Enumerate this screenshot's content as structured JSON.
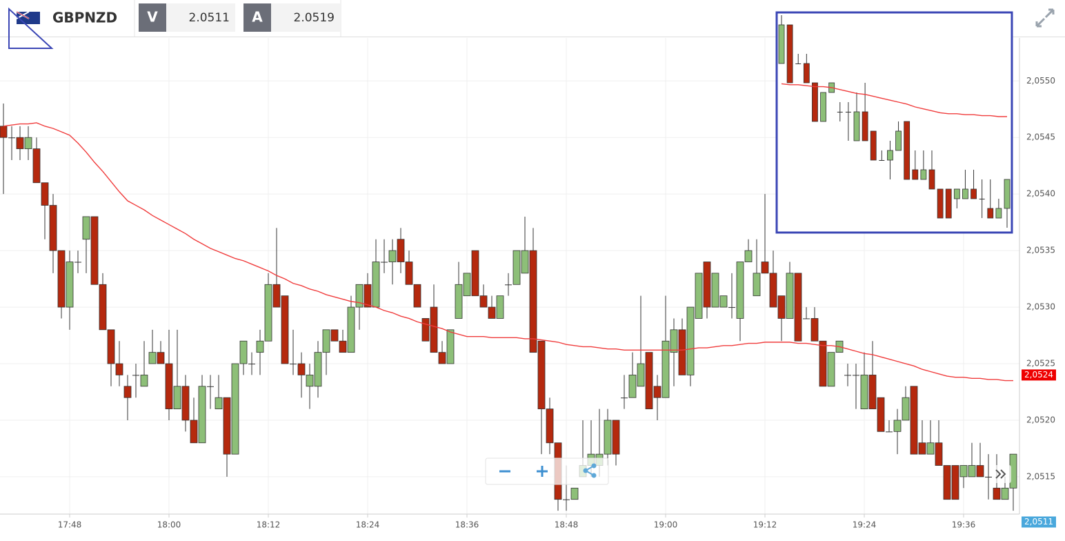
{
  "header": {
    "symbol": "GBPNZD",
    "bid_label": "V",
    "bid": 2.0511,
    "ask_label": "A",
    "ask": 2.0519
  },
  "chart_data": {
    "type": "candlestick",
    "categories": [
      null,
      null,
      null,
      null,
      null,
      null,
      null,
      null,
      "17:48",
      null,
      null,
      null,
      null,
      null,
      null,
      null,
      null,
      null,
      null,
      null,
      "18:00",
      null,
      null,
      null,
      null,
      null,
      null,
      null,
      null,
      null,
      null,
      null,
      "18:12",
      null,
      null,
      null,
      null,
      null,
      null,
      null,
      null,
      null,
      null,
      null,
      "18:24",
      null,
      null,
      null,
      null,
      null,
      null,
      null,
      null,
      null,
      null,
      null,
      "18:36",
      null,
      null,
      null,
      null,
      null,
      null,
      null,
      null,
      null,
      null,
      null,
      "18:48",
      null,
      null,
      null,
      null,
      null,
      null,
      null,
      null,
      null,
      null,
      null,
      "19:00",
      null,
      null,
      null,
      null,
      null,
      null,
      null,
      null,
      null,
      null,
      null,
      "19:12",
      null,
      null,
      null,
      null,
      null,
      null,
      null,
      null,
      null,
      null,
      null,
      "19:24",
      null,
      null,
      null,
      null,
      null,
      null,
      null,
      null,
      null,
      null,
      null,
      "19:36",
      null,
      null,
      null,
      null,
      null,
      null
    ],
    "open": [
      2.0546,
      2.0545,
      2.0545,
      2.0544,
      2.0544,
      2.0541,
      2.0539,
      2.0535,
      2.053,
      2.0534,
      2.0536,
      2.0538,
      2.0532,
      2.0528,
      2.0525,
      2.0523,
      2.0524,
      2.0523,
      2.0525,
      2.0526,
      2.0525,
      2.0521,
      2.0523,
      2.052,
      2.0518,
      2.0523,
      2.0521,
      2.0522,
      2.0517,
      2.0525,
      2.0525,
      2.0526,
      2.0527,
      2.0532,
      2.0531,
      2.0525,
      2.0525,
      2.0523,
      2.0523,
      2.0526,
      2.0528,
      2.0527,
      2.0526,
      2.053,
      2.0532,
      2.053,
      2.0534,
      2.0534,
      2.0536,
      2.0534,
      2.0532,
      2.0529,
      2.053,
      2.0526,
      2.0525,
      2.0529,
      2.0531,
      2.0535,
      2.0531,
      2.053,
      2.0529,
      2.0532,
      2.0532,
      2.0533,
      2.0535,
      2.0527,
      2.0521,
      2.0518,
      2.0513,
      2.0513,
      2.0515,
      2.0516,
      2.0516,
      2.0517,
      2.052,
      2.0522,
      2.0522,
      2.0523,
      2.0526,
      2.0523,
      2.0522,
      2.0526,
      2.0528,
      2.0524,
      2.0529,
      2.0534,
      2.053,
      2.053,
      2.053,
      2.0529,
      2.0534,
      2.0531,
      2.0534,
      2.0533,
      2.0531,
      2.0529,
      2.0533,
      2.0529,
      2.0529,
      2.0527,
      2.0523,
      2.0526,
      2.0524,
      2.0524,
      2.0521,
      2.0524,
      2.0522,
      2.0519,
      2.0519,
      2.052,
      2.0523,
      2.0518,
      2.0517,
      2.0518,
      2.0516,
      2.0516,
      2.0515,
      2.0515,
      2.0516,
      2.0515,
      2.0514,
      2.0513,
      2.0514
    ],
    "high": [
      2.0548,
      2.0546,
      2.0546,
      2.0546,
      2.0545,
      2.0541,
      2.054,
      2.0535,
      2.0535,
      2.0535,
      2.0538,
      2.0538,
      2.0533,
      2.0528,
      2.0527,
      2.0524,
      2.0525,
      2.0527,
      2.0528,
      2.0527,
      2.0528,
      2.0528,
      2.0524,
      2.0522,
      2.0524,
      2.0524,
      2.0524,
      2.0522,
      2.0525,
      2.0527,
      2.0526,
      2.0528,
      2.0533,
      2.0537,
      2.0531,
      2.0528,
      2.0526,
      2.0525,
      2.0527,
      2.0528,
      2.0528,
      2.0528,
      2.0531,
      2.0532,
      2.0533,
      2.0536,
      2.0536,
      2.0536,
      2.0537,
      2.0535,
      2.0532,
      2.0529,
      2.0532,
      2.0527,
      2.0528,
      2.0534,
      2.0533,
      2.0535,
      2.0532,
      2.0531,
      2.0531,
      2.0533,
      2.0535,
      2.0538,
      2.0537,
      2.0527,
      2.0522,
      2.0518,
      2.0516,
      2.0514,
      2.052,
      2.052,
      2.0521,
      2.0521,
      2.052,
      2.0524,
      2.0526,
      2.0531,
      2.0526,
      2.0524,
      2.0531,
      2.0529,
      2.0529,
      2.053,
      2.0533,
      2.0534,
      2.0533,
      2.0531,
      2.0533,
      2.0534,
      2.0536,
      2.0536,
      2.054,
      2.0535,
      2.0531,
      2.0534,
      2.0533,
      2.053,
      2.053,
      2.0527,
      2.0526,
      2.0527,
      2.0525,
      2.0525,
      2.0526,
      2.0527,
      2.0522,
      2.052,
      2.0521,
      2.0523,
      2.0523,
      2.052,
      2.052,
      2.052,
      2.0516,
      2.0516,
      2.0516,
      2.0518,
      2.0518,
      2.0517,
      2.0517,
      2.0515,
      2.0517
    ],
    "low": [
      2.054,
      2.0543,
      2.0543,
      2.0543,
      2.0541,
      2.0536,
      2.0533,
      2.0529,
      2.0528,
      2.0533,
      2.0533,
      2.0532,
      2.0528,
      2.0523,
      2.0523,
      2.052,
      2.0522,
      2.0523,
      2.0525,
      2.0525,
      2.052,
      2.0521,
      2.0519,
      2.0518,
      2.0518,
      2.0521,
      2.0521,
      2.0515,
      2.0517,
      2.0524,
      2.0524,
      2.0524,
      2.0527,
      2.053,
      2.0525,
      2.0524,
      2.0522,
      2.0521,
      2.0522,
      2.0524,
      2.0527,
      2.0526,
      2.0526,
      2.0528,
      2.053,
      2.053,
      2.0533,
      2.0532,
      2.0533,
      2.0532,
      2.053,
      2.0527,
      2.0526,
      2.0525,
      2.0525,
      2.0529,
      2.0531,
      2.0531,
      2.053,
      2.0529,
      2.0529,
      2.0531,
      2.0532,
      2.0533,
      2.0526,
      2.0517,
      2.0517,
      2.0512,
      2.0512,
      2.0513,
      2.0515,
      2.0515,
      2.0515,
      2.0516,
      2.0516,
      2.0521,
      2.0522,
      2.0523,
      2.0521,
      2.052,
      2.0522,
      2.0523,
      2.0524,
      2.0523,
      2.0529,
      2.0529,
      2.053,
      2.053,
      2.0529,
      2.0527,
      2.0534,
      2.0531,
      2.0533,
      2.053,
      2.0527,
      2.0529,
      2.0527,
      2.0529,
      2.0527,
      2.0523,
      2.0523,
      2.0526,
      2.0523,
      2.0521,
      2.0521,
      2.0521,
      2.0519,
      2.0519,
      2.0517,
      2.052,
      2.0517,
      2.0517,
      2.0517,
      2.0516,
      2.0513,
      2.0513,
      2.0514,
      2.0515,
      2.0515,
      2.0513,
      2.0513,
      2.0513,
      2.0512
    ],
    "close": [
      2.0545,
      2.0545,
      2.0544,
      2.0545,
      2.0541,
      2.0539,
      2.0535,
      2.053,
      2.0534,
      2.0534,
      2.0538,
      2.0532,
      2.0528,
      2.0525,
      2.0524,
      2.0522,
      2.0524,
      2.0524,
      2.0526,
      2.0525,
      2.0521,
      2.0523,
      2.052,
      2.0518,
      2.0523,
      2.0523,
      2.0522,
      2.0517,
      2.0525,
      2.0527,
      2.0525,
      2.0527,
      2.0532,
      2.053,
      2.0525,
      2.0525,
      2.0524,
      2.0524,
      2.0526,
      2.0528,
      2.0527,
      2.0526,
      2.053,
      2.0532,
      2.053,
      2.0534,
      2.0534,
      2.0535,
      2.0534,
      2.0532,
      2.053,
      2.0527,
      2.0526,
      2.0525,
      2.0528,
      2.0532,
      2.0533,
      2.0531,
      2.053,
      2.0529,
      2.0531,
      2.0532,
      2.0535,
      2.0535,
      2.0526,
      2.0521,
      2.0518,
      2.0513,
      2.0513,
      2.0514,
      2.0516,
      2.0517,
      2.0517,
      2.052,
      2.0517,
      2.0522,
      2.0524,
      2.0525,
      2.0521,
      2.0522,
      2.0527,
      2.0528,
      2.0524,
      2.053,
      2.0533,
      2.053,
      2.0533,
      2.0531,
      2.053,
      2.0534,
      2.0535,
      2.0533,
      2.0533,
      2.053,
      2.0529,
      2.0533,
      2.0527,
      2.0529,
      2.0527,
      2.0523,
      2.0526,
      2.0527,
      2.0524,
      2.0524,
      2.0524,
      2.0521,
      2.0519,
      2.0519,
      2.052,
      2.0522,
      2.0517,
      2.0517,
      2.0518,
      2.0516,
      2.0513,
      2.0513,
      2.0516,
      2.0516,
      2.0515,
      2.0515,
      2.0513,
      2.0514,
      2.0517
    ],
    "up_color": "#8dbf78",
    "down_color": "#b5290e",
    "ma": {
      "color": "#f03c3c",
      "values": [
        2.0546,
        2.05461,
        2.05462,
        2.05462,
        2.05463,
        2.0546,
        2.05458,
        2.05455,
        2.05452,
        2.05445,
        2.05437,
        2.05428,
        2.0542,
        2.05411,
        2.05402,
        2.05394,
        2.0539,
        2.05386,
        2.05381,
        2.05377,
        2.05373,
        2.05369,
        2.05365,
        2.0536,
        2.05356,
        2.05352,
        2.05349,
        2.05346,
        2.05343,
        2.05341,
        2.05338,
        2.05335,
        2.05332,
        2.05328,
        2.05325,
        2.05321,
        2.05319,
        2.05316,
        2.05314,
        2.05311,
        2.05309,
        2.05307,
        2.05305,
        2.05304,
        2.05302,
        2.053,
        2.05297,
        2.05295,
        2.05292,
        2.0529,
        2.05287,
        2.05285,
        2.05283,
        2.05281,
        2.05278,
        2.05276,
        2.05274,
        2.05274,
        2.05274,
        2.05273,
        2.05273,
        2.05273,
        2.05273,
        2.05272,
        2.05272,
        2.05271,
        2.0527,
        2.05269,
        2.05267,
        2.05266,
        2.05265,
        2.05265,
        2.05264,
        2.05263,
        2.05263,
        2.05262,
        2.05262,
        2.05262,
        2.05262,
        2.05262,
        2.05262,
        2.05262,
        2.05262,
        2.05263,
        2.05264,
        2.05264,
        2.05265,
        2.05266,
        2.05266,
        2.05267,
        2.05268,
        2.05268,
        2.05269,
        2.05269,
        2.05269,
        2.05269,
        2.05268,
        2.05268,
        2.05267,
        2.05266,
        2.05266,
        2.05265,
        2.05263,
        2.05261,
        2.05259,
        2.05258,
        2.05256,
        2.05254,
        2.05252,
        2.0525,
        2.05248,
        2.05245,
        2.05243,
        2.05241,
        2.05239,
        2.05238,
        2.05238,
        2.05237,
        2.05237,
        2.05236,
        2.05236,
        2.05235,
        2.05235
      ]
    },
    "ylim": [
      2.05117,
      2.05538
    ],
    "yticks": [
      {
        "value": 2.0515,
        "label": "2,0515"
      },
      {
        "value": 2.052,
        "label": "2,0520"
      },
      {
        "value": 2.0525,
        "label": "2,0525"
      },
      {
        "value": 2.053,
        "label": "2,0530"
      },
      {
        "value": 2.0535,
        "label": "2,0535"
      },
      {
        "value": 2.054,
        "label": "2,0540"
      },
      {
        "value": 2.0545,
        "label": "2,0545"
      },
      {
        "value": 2.055,
        "label": "2,0550"
      }
    ],
    "ma_label": {
      "value": 2.0524,
      "label": "2,0524"
    },
    "last_price_label": {
      "value": 2.0511,
      "label": "2,0511"
    },
    "grid": true
  }
}
